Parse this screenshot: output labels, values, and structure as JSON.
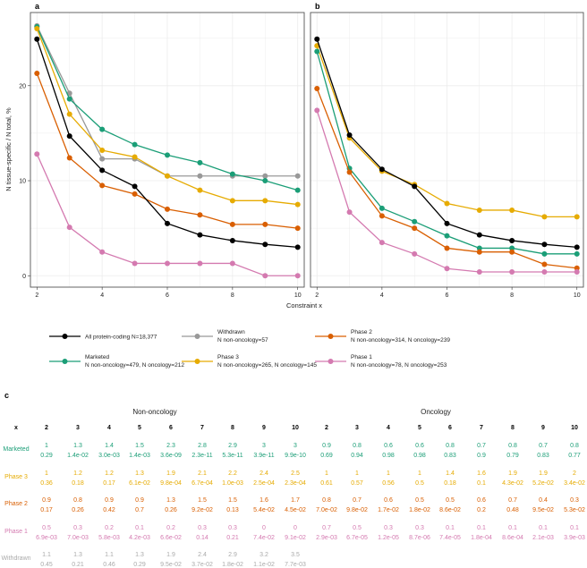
{
  "chart_data": [
    {
      "type": "line",
      "panel_label": "a",
      "x": [
        2,
        3,
        4,
        5,
        6,
        7,
        8,
        9,
        10
      ],
      "xlabel": "Constraint x",
      "ylabel": "N tissue-specific / N total, %",
      "xticks": [
        2,
        4,
        6,
        8,
        10
      ],
      "yticks": [
        0,
        10,
        20
      ],
      "xlim": [
        1.8,
        10.2
      ],
      "ylim": [
        -1.2,
        27.7
      ],
      "grid": true,
      "series": [
        {
          "name": "Withdrawn",
          "color": "#999999",
          "values": [
            26.3,
            19.2,
            12.3,
            12.3,
            10.5,
            10.5,
            10.5,
            10.5,
            10.5
          ]
        },
        {
          "name": "Marketed",
          "color": "#1b9e77",
          "values": [
            26.2,
            18.6,
            15.4,
            13.8,
            12.7,
            11.9,
            10.7,
            10.0,
            9.0
          ]
        },
        {
          "name": "Phase 3",
          "color": "#e6ab02",
          "values": [
            26.0,
            17.0,
            13.2,
            12.5,
            10.5,
            9.0,
            7.9,
            7.9,
            7.5
          ]
        },
        {
          "name": "Phase 2",
          "color": "#d95f02",
          "values": [
            21.3,
            12.4,
            9.5,
            8.6,
            7.0,
            6.4,
            5.4,
            5.4,
            5.0
          ]
        },
        {
          "name": "Phase 1",
          "color": "#d47ab0",
          "values": [
            12.8,
            5.1,
            2.5,
            1.3,
            1.3,
            1.3,
            1.3,
            0,
            0
          ]
        },
        {
          "name": "All protein-coding N=18,377",
          "color": "#000000",
          "values": [
            24.9,
            14.7,
            11.1,
            9.4,
            5.5,
            4.3,
            3.7,
            3.3,
            3.0
          ]
        }
      ]
    },
    {
      "type": "line",
      "panel_label": "b",
      "x": [
        2,
        3,
        4,
        5,
        6,
        7,
        8,
        9,
        10
      ],
      "xticks": [
        2,
        4,
        6,
        8,
        10
      ],
      "xlim": [
        1.8,
        10.2
      ],
      "ylim": [
        -1.2,
        27.7
      ],
      "grid": true,
      "series": [
        {
          "name": "Phase 3",
          "color": "#e6ab02",
          "values": [
            24.2,
            14.5,
            11.0,
            9.6,
            7.6,
            6.9,
            6.9,
            6.2,
            6.2
          ]
        },
        {
          "name": "Marketed",
          "color": "#1b9e77",
          "values": [
            23.6,
            11.3,
            7.1,
            5.7,
            4.2,
            2.9,
            2.9,
            2.3,
            2.3
          ]
        },
        {
          "name": "Phase 2",
          "color": "#d95f02",
          "values": [
            19.7,
            10.9,
            6.3,
            5.0,
            2.9,
            2.5,
            2.5,
            1.2,
            0.8
          ]
        },
        {
          "name": "Phase 1",
          "color": "#d47ab0",
          "values": [
            17.4,
            6.7,
            3.5,
            2.3,
            0.75,
            0.4,
            0.4,
            0.4,
            0.4
          ]
        },
        {
          "name": "All protein-coding N=18,377",
          "color": "#000000",
          "values": [
            24.9,
            14.8,
            11.2,
            9.4,
            5.5,
            4.3,
            3.7,
            3.3,
            3.0
          ]
        }
      ]
    }
  ],
  "legend": [
    {
      "line1": "All protein-coding N=18,377",
      "line2": "",
      "color": "#000000"
    },
    {
      "line1": "Withdrawn",
      "line2": "N non-oncology=57",
      "color": "#999999"
    },
    {
      "line1": "Phase 2",
      "line2": "N non-oncology=314, N oncology=239",
      "color": "#d95f02"
    },
    {
      "line1": "Marketed",
      "line2": "N non-oncology=479, N oncology=212",
      "color": "#1b9e77"
    },
    {
      "line1": "Phase 3",
      "line2": "N non-oncology=265, N oncology=145",
      "color": "#e6ab02"
    },
    {
      "line1": "Phase 1",
      "line2": "N non-oncology=78, N oncology=253",
      "color": "#d47ab0"
    }
  ],
  "table": {
    "panel_label": "c",
    "x_label": "x",
    "group_non_oncology": "Non-oncology",
    "group_oncology": "Oncology",
    "columns": [
      "2",
      "3",
      "4",
      "5",
      "6",
      "7",
      "8",
      "9",
      "10"
    ],
    "rows": [
      {
        "label": "Marketed",
        "color": "#1b9e77",
        "non_top": [
          "1",
          "1.3",
          "1.4",
          "1.5",
          "2.3",
          "2.8",
          "2.9",
          "3",
          "3"
        ],
        "non_bottom": [
          "0.29",
          "1.4e-02",
          "3.0e-03",
          "1.4e-03",
          "3.6e-09",
          "2.3e-11",
          "5.3e-11",
          "3.9e-11",
          "9.9e-10"
        ],
        "onc_top": [
          "0.9",
          "0.8",
          "0.6",
          "0.6",
          "0.8",
          "0.7",
          "0.8",
          "0.7",
          "0.8"
        ],
        "onc_bottom": [
          "0.69",
          "0.94",
          "0.98",
          "0.98",
          "0.83",
          "0.9",
          "0.79",
          "0.83",
          "0.77"
        ]
      },
      {
        "label": "Phase 3",
        "color": "#e6ab02",
        "non_top": [
          "1",
          "1.2",
          "1.2",
          "1.3",
          "1.9",
          "2.1",
          "2.2",
          "2.4",
          "2.5"
        ],
        "non_bottom": [
          "0.36",
          "0.18",
          "0.17",
          "6.1e-02",
          "9.8e-04",
          "6.7e-04",
          "1.0e-03",
          "2.5e-04",
          "2.3e-04"
        ],
        "onc_top": [
          "1",
          "1",
          "1",
          "1",
          "1.4",
          "1.6",
          "1.9",
          "1.9",
          "2"
        ],
        "onc_bottom": [
          "0.61",
          "0.57",
          "0.56",
          "0.5",
          "0.18",
          "0.1",
          "4.3e-02",
          "5.2e-02",
          "3.4e-02"
        ]
      },
      {
        "label": "Phase 2",
        "color": "#d95f02",
        "non_top": [
          "0.9",
          "0.8",
          "0.9",
          "0.9",
          "1.3",
          "1.5",
          "1.5",
          "1.6",
          "1.7"
        ],
        "non_bottom": [
          "0.17",
          "0.26",
          "0.42",
          "0.7",
          "0.26",
          "9.2e-02",
          "0.13",
          "5.4e-02",
          "4.5e-02"
        ],
        "onc_top": [
          "0.8",
          "0.7",
          "0.6",
          "0.5",
          "0.5",
          "0.6",
          "0.7",
          "0.4",
          "0.3"
        ],
        "onc_bottom": [
          "7.0e-02",
          "9.8e-02",
          "1.7e-02",
          "1.8e-02",
          "8.6e-02",
          "0.2",
          "0.48",
          "9.5e-02",
          "5.3e-02"
        ]
      },
      {
        "label": "Phase 1",
        "color": "#d47ab0",
        "non_top": [
          "0.5",
          "0.3",
          "0.2",
          "0.1",
          "0.2",
          "0.3",
          "0.3",
          "0",
          "0"
        ],
        "non_bottom": [
          "6.9e-03",
          "7.0e-03",
          "5.8e-03",
          "4.2e-03",
          "6.6e-02",
          "0.14",
          "0.21",
          "7.4e-02",
          "9.1e-02"
        ],
        "onc_top": [
          "0.7",
          "0.5",
          "0.3",
          "0.3",
          "0.1",
          "0.1",
          "0.1",
          "0.1",
          "0.1"
        ],
        "onc_bottom": [
          "2.9e-03",
          "6.7e-05",
          "1.2e-05",
          "8.7e-06",
          "7.4e-05",
          "1.8e-04",
          "8.6e-04",
          "2.1e-03",
          "3.9e-03"
        ]
      },
      {
        "label": "Withdrawn",
        "color": "#aaaaaa",
        "non_top": [
          "1.1",
          "1.3",
          "1.1",
          "1.3",
          "1.9",
          "2.4",
          "2.9",
          "3.2",
          "3.5"
        ],
        "non_bottom": [
          "0.45",
          "0.21",
          "0.46",
          "0.29",
          "9.5e-02",
          "3.7e-02",
          "1.8e-02",
          "1.1e-02",
          "7.7e-03"
        ]
      }
    ]
  }
}
